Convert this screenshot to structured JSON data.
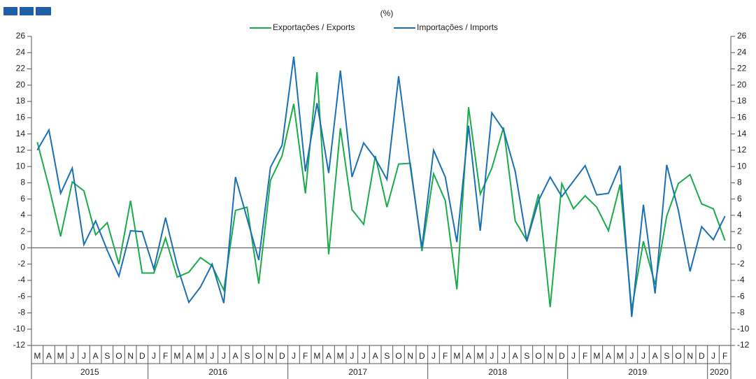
{
  "chart_data": {
    "type": "line",
    "subtitle": "(%)",
    "category_groups": [
      {
        "label": "2015",
        "categories": [
          "M",
          "A",
          "M",
          "J",
          "J",
          "A",
          "S",
          "O",
          "N",
          "D"
        ]
      },
      {
        "label": "2016",
        "categories": [
          "J",
          "F",
          "M",
          "A",
          "M",
          "J",
          "J",
          "A",
          "S",
          "O",
          "N",
          "D"
        ]
      },
      {
        "label": "2017",
        "categories": [
          "J",
          "F",
          "M",
          "A",
          "M",
          "J",
          "J",
          "A",
          "S",
          "O",
          "N",
          "D"
        ]
      },
      {
        "label": "2018",
        "categories": [
          "J",
          "F",
          "M",
          "A",
          "M",
          "J",
          "J",
          "A",
          "S",
          "O",
          "N",
          "D"
        ]
      },
      {
        "label": "2019",
        "categories": [
          "J",
          "F",
          "M",
          "A",
          "M",
          "J",
          "J",
          "A",
          "S",
          "O",
          "N",
          "D"
        ]
      },
      {
        "label": "2020",
        "categories": [
          "J",
          "F"
        ]
      }
    ],
    "series": [
      {
        "name": "Exportações / Exports",
        "color": "#1aab4b",
        "values": [
          13,
          7.5,
          1.4,
          8.1,
          7.0,
          1.6,
          3.1,
          -2.0,
          5.8,
          -3.1,
          -3.1,
          1.2,
          -3.6,
          -3.0,
          -1.2,
          -2.2,
          -5.2,
          4.6,
          5.0,
          -4.4,
          8.3,
          11.3,
          17.7,
          6.7,
          21.6,
          -0.8,
          14.7,
          4.7,
          2.9,
          11.3,
          5.0,
          10.3,
          10.4,
          -0.4,
          9.1,
          5.8,
          -5.1,
          17.3,
          6.6,
          9.8,
          14.8,
          3.3,
          0.9,
          6.6,
          -7.3,
          7.9,
          4.8,
          6.4,
          5.0,
          2.1,
          7.8,
          -7.6,
          0.8,
          -4.5,
          3.9,
          7.9,
          9.0,
          5.4,
          4.8,
          0.9
        ]
      },
      {
        "name": "Importações / Imports",
        "color": "#1b6fb5",
        "values": [
          12.0,
          14.5,
          6.7,
          9.8,
          0.4,
          3.3,
          -0.3,
          -3.5,
          2.1,
          2.0,
          -2.6,
          3.7,
          -2.2,
          -6.7,
          -4.8,
          -2.0,
          -6.8,
          8.7,
          3.6,
          -1.5,
          9.9,
          12.6,
          23.5,
          9.4,
          17.8,
          9.2,
          21.8,
          8.7,
          12.9,
          11.0,
          8.4,
          21.1,
          10.0,
          0.0,
          12.0,
          8.7,
          0.7,
          15.0,
          2.1,
          16.6,
          14.5,
          9.4,
          0.8,
          5.8,
          8.7,
          6.3,
          8.2,
          10.1,
          6.5,
          6.7,
          10.1,
          -8.5,
          5.3,
          -5.6,
          10.2,
          4.6,
          -2.9,
          2.6,
          1.0,
          3.9
        ]
      }
    ],
    "ylim": [
      -12,
      26
    ],
    "yticks": [
      -12,
      -10,
      -8,
      -6,
      -4,
      -2,
      0,
      2,
      4,
      6,
      8,
      10,
      12,
      14,
      16,
      18,
      20,
      22,
      24,
      26
    ],
    "zero_line": true,
    "legend": "top"
  }
}
